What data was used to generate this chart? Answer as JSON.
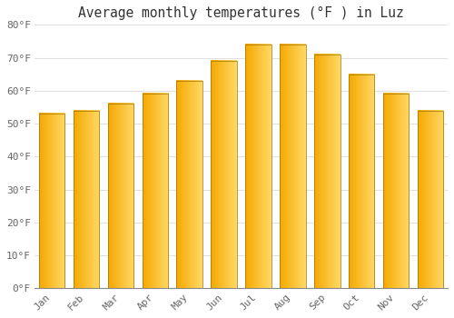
{
  "title": "Average monthly temperatures (°F ) in Luz",
  "months": [
    "Jan",
    "Feb",
    "Mar",
    "Apr",
    "May",
    "Jun",
    "Jul",
    "Aug",
    "Sep",
    "Oct",
    "Nov",
    "Dec"
  ],
  "values": [
    53,
    54,
    56,
    59,
    63,
    69,
    74,
    74,
    71,
    65,
    59,
    54
  ],
  "bar_color_left": "#F5A800",
  "bar_color_right": "#FFD966",
  "bar_border_color": "#A07000",
  "ylim": [
    0,
    80
  ],
  "ytick_step": 10,
  "background_color": "#ffffff",
  "grid_color": "#e0e0e0",
  "title_fontsize": 10.5,
  "tick_fontsize": 8,
  "bar_width": 0.75
}
